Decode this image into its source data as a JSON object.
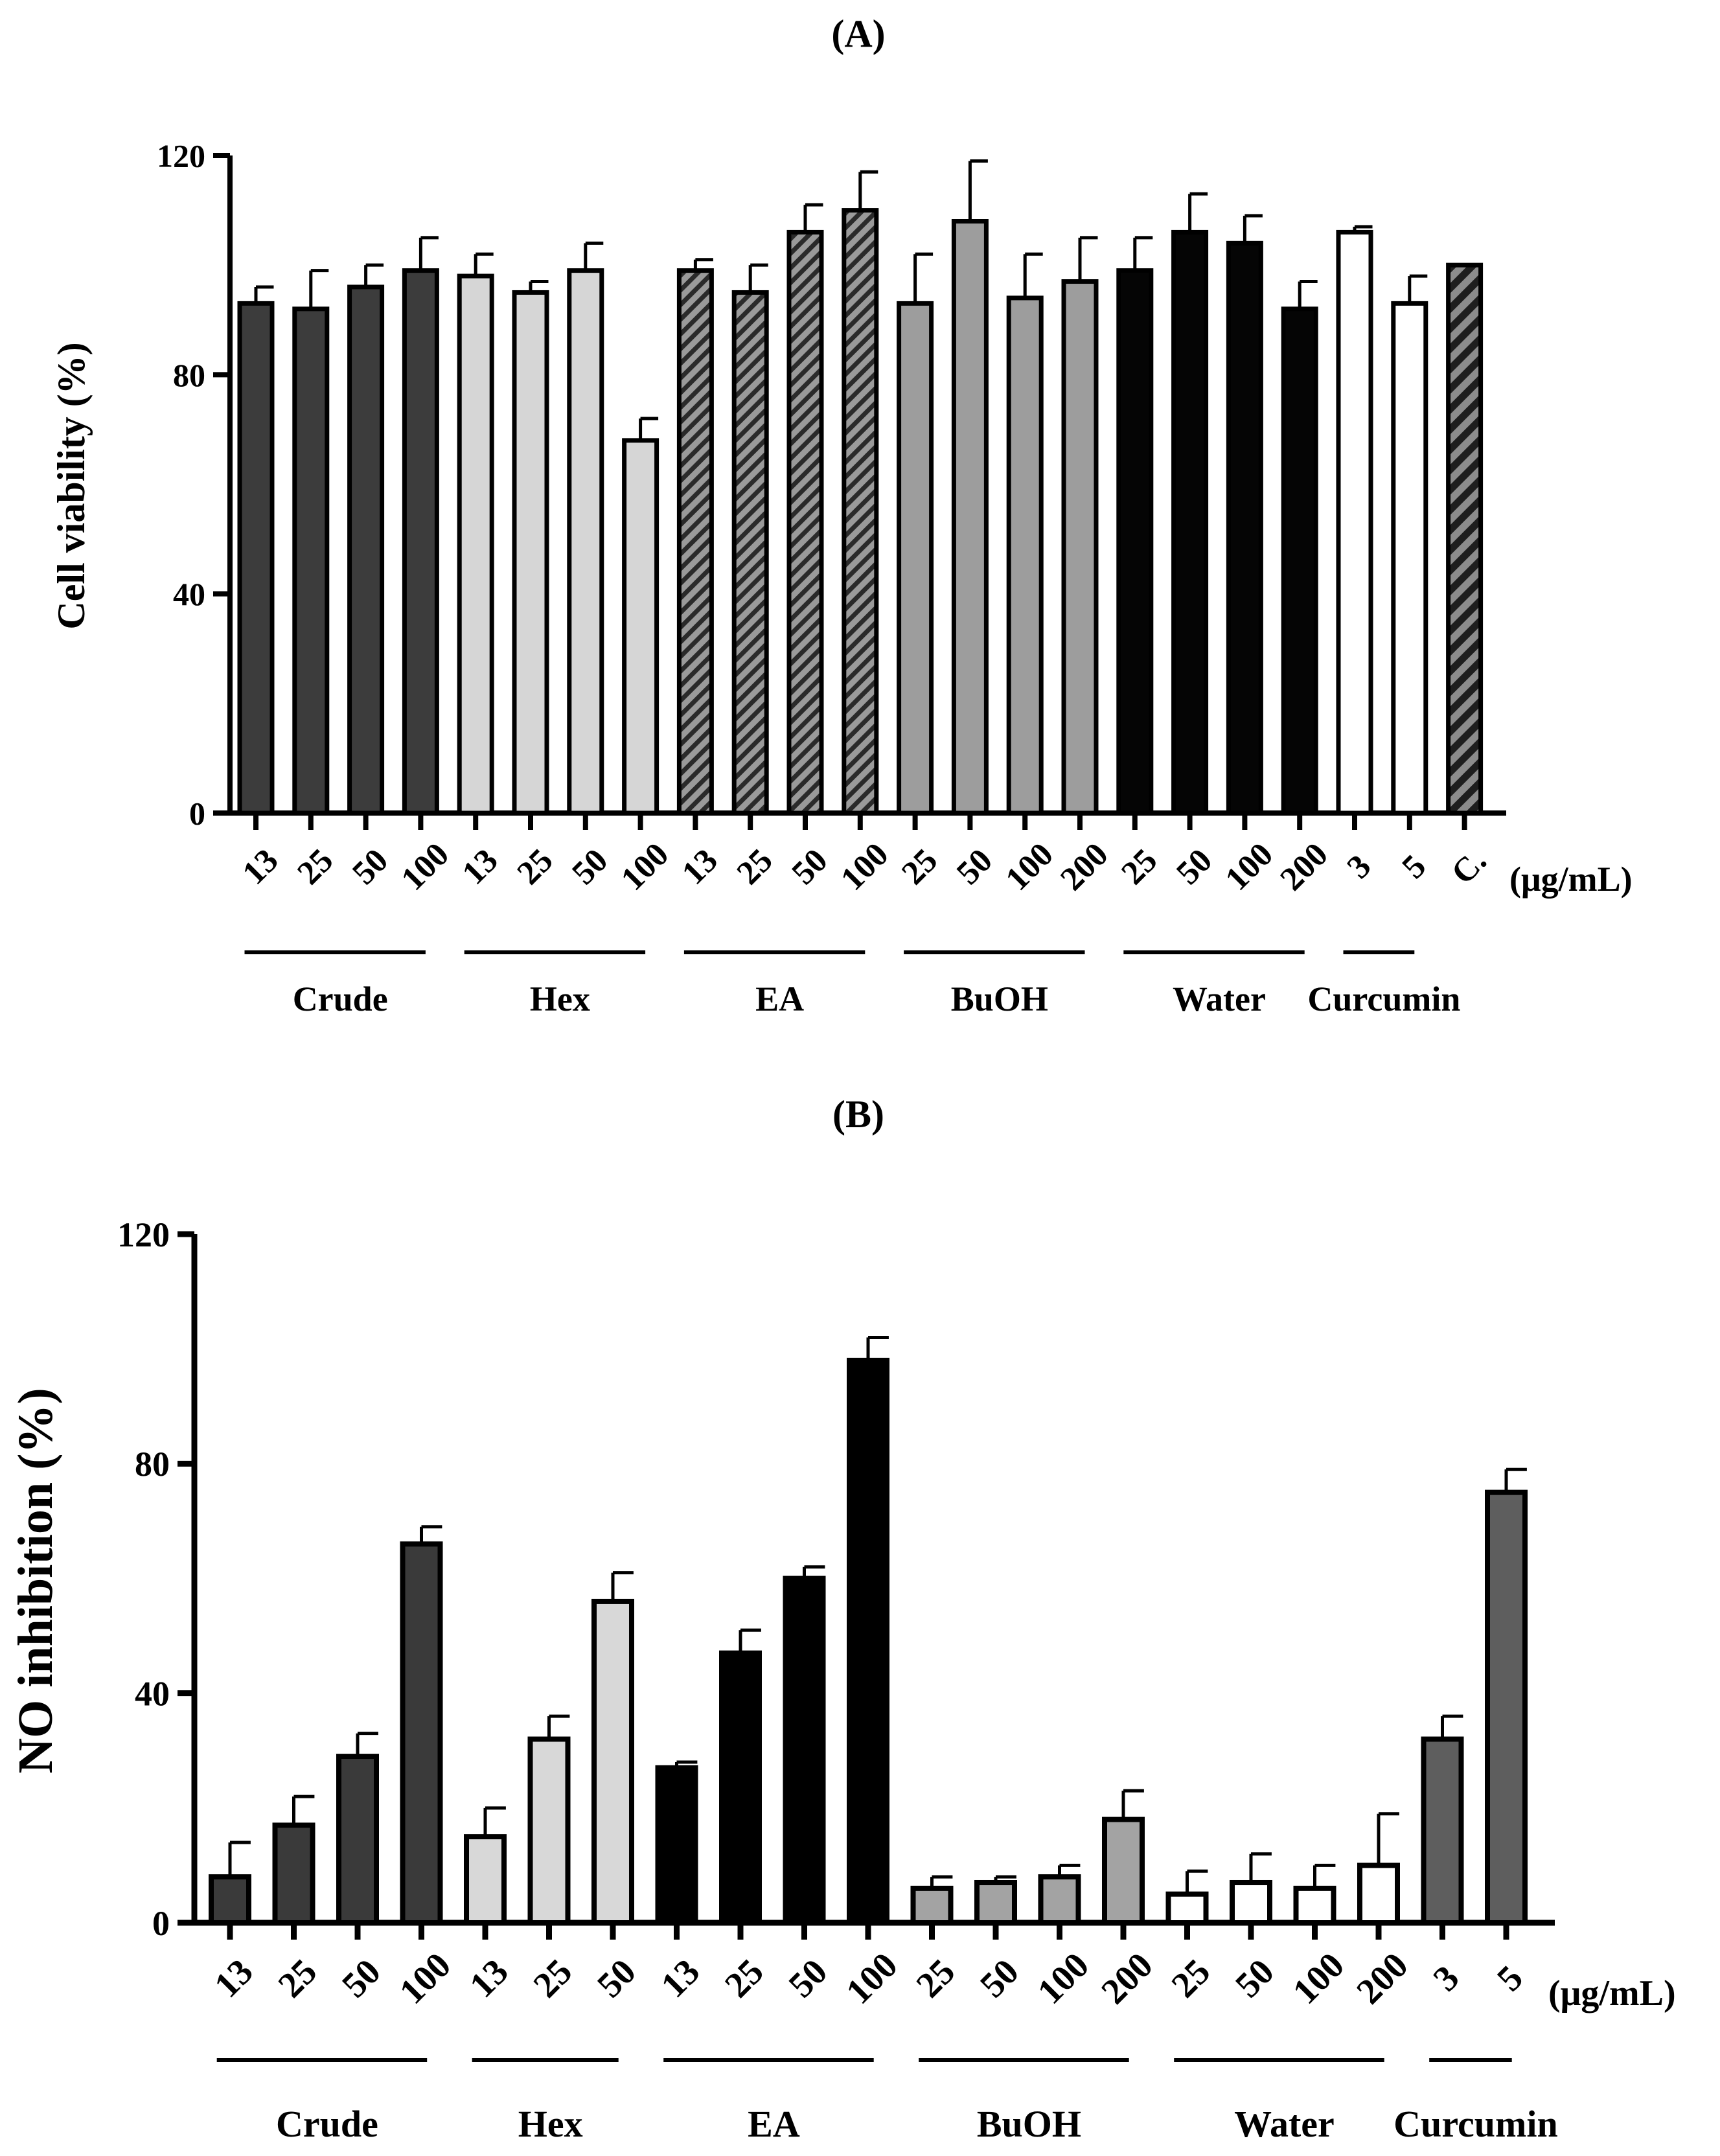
{
  "chart_data": [
    {
      "type": "bar",
      "panel_label": "(A)",
      "title": "",
      "ylabel": "Cell viability (%)",
      "xlabel": "",
      "unit_label": "(μg/mL)",
      "ylim": [
        0,
        120
      ],
      "yticks": [
        "0",
        "40",
        "80",
        "120"
      ],
      "grid": false,
      "categories": [
        "13",
        "25",
        "50",
        "100",
        "13",
        "25",
        "50",
        "100",
        "13",
        "25",
        "50",
        "100",
        "25",
        "50",
        "100",
        "200",
        "25",
        "50",
        "100",
        "200",
        "3",
        "5",
        "C."
      ],
      "values": [
        93,
        92,
        96,
        99,
        98,
        95,
        99,
        68,
        99,
        95,
        106,
        110,
        93,
        108,
        94,
        97,
        99,
        106,
        104,
        92,
        106,
        93,
        100
      ],
      "errors": [
        3,
        7,
        4,
        6,
        4,
        2,
        5,
        4,
        2,
        5,
        5,
        7,
        9,
        11,
        8,
        8,
        6,
        7,
        5,
        5,
        1,
        5,
        0
      ],
      "group_of_bar": [
        0,
        0,
        0,
        0,
        1,
        1,
        1,
        1,
        2,
        2,
        2,
        2,
        3,
        3,
        3,
        3,
        4,
        4,
        4,
        4,
        5,
        5,
        6
      ],
      "groups": [
        {
          "name": "Crude",
          "color": "#3c3c3c",
          "pattern": "solid"
        },
        {
          "name": "Hex",
          "color": "#d6d6d6",
          "pattern": "solid"
        },
        {
          "name": "EA",
          "color": "#555555",
          "pattern": "hatch"
        },
        {
          "name": "BuOH",
          "color": "#9d9d9d",
          "pattern": "solid"
        },
        {
          "name": "Water",
          "color": "#050505",
          "pattern": "solid"
        },
        {
          "name": "Curcumin",
          "color": "#ffffff",
          "pattern": "solid"
        },
        {
          "name": "",
          "color": "#6e6e6e",
          "pattern": "hatch-bold"
        }
      ]
    },
    {
      "type": "bar",
      "panel_label": "(B)",
      "title": "",
      "ylabel": "NO inhibition (%)",
      "xlabel": "",
      "unit_label": "(μg/mL)",
      "ylim": [
        0,
        120
      ],
      "yticks": [
        "0",
        "40",
        "80",
        "120"
      ],
      "grid": false,
      "categories": [
        "13",
        "25",
        "50",
        "100",
        "13",
        "25",
        "50",
        "13",
        "25",
        "50",
        "100",
        "25",
        "50",
        "100",
        "200",
        "25",
        "50",
        "100",
        "200",
        "3",
        "5"
      ],
      "values": [
        8,
        17,
        29,
        66,
        15,
        32,
        56,
        27,
        47,
        60,
        98,
        6,
        7,
        8,
        18,
        5,
        7,
        6,
        10,
        32,
        75
      ],
      "errors": [
        6,
        5,
        4,
        3,
        5,
        4,
        5,
        1,
        4,
        2,
        4,
        2,
        1,
        2,
        5,
        4,
        5,
        4,
        9,
        4,
        4
      ],
      "group_of_bar": [
        0,
        0,
        0,
        0,
        1,
        1,
        1,
        2,
        2,
        2,
        2,
        3,
        3,
        3,
        3,
        4,
        4,
        4,
        4,
        5,
        5
      ],
      "groups": [
        {
          "name": "Crude",
          "color": "#3a3a3a",
          "pattern": "solid"
        },
        {
          "name": "Hex",
          "color": "#d8d8d8",
          "pattern": "solid"
        },
        {
          "name": "EA",
          "color": "#000000",
          "pattern": "solid"
        },
        {
          "name": "BuOH",
          "color": "#a3a3a3",
          "pattern": "solid"
        },
        {
          "name": "Water",
          "color": "#ffffff",
          "pattern": "solid"
        },
        {
          "name": "Curcumin",
          "color": "#5e5e5e",
          "pattern": "solid"
        }
      ]
    }
  ]
}
